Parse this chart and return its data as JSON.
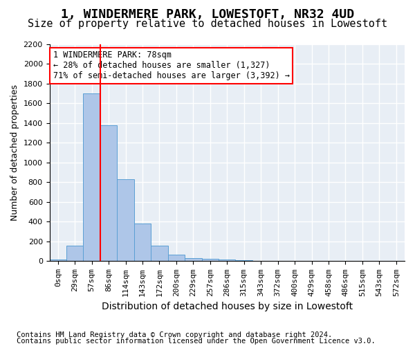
{
  "title": "1, WINDERMERE PARK, LOWESTOFT, NR32 4UD",
  "subtitle": "Size of property relative to detached houses in Lowestoft",
  "xlabel": "Distribution of detached houses by size in Lowestoft",
  "ylabel": "Number of detached properties",
  "bar_color": "#aec6e8",
  "bar_edge_color": "#5a9fd4",
  "background_color": "#e8eef5",
  "grid_color": "#ffffff",
  "bins": [
    "0sqm",
    "29sqm",
    "57sqm",
    "86sqm",
    "114sqm",
    "143sqm",
    "172sqm",
    "200sqm",
    "229sqm",
    "257sqm",
    "286sqm",
    "315sqm",
    "343sqm",
    "372sqm",
    "400sqm",
    "429sqm",
    "458sqm",
    "486sqm",
    "515sqm",
    "543sqm",
    "572sqm"
  ],
  "values": [
    20,
    155,
    1700,
    1380,
    830,
    380,
    160,
    65,
    30,
    25,
    20,
    10,
    5,
    5,
    0,
    0,
    0,
    0,
    0,
    0,
    0
  ],
  "ylim": [
    0,
    2200
  ],
  "yticks": [
    0,
    200,
    400,
    600,
    800,
    1000,
    1200,
    1400,
    1600,
    1800,
    2000,
    2200
  ],
  "property_sqm": 78,
  "red_line_x": 2.5,
  "annotation_text": "1 WINDERMERE PARK: 78sqm\n← 28% of detached houses are smaller (1,327)\n71% of semi-detached houses are larger (3,392) →",
  "footer_line1": "Contains HM Land Registry data © Crown copyright and database right 2024.",
  "footer_line2": "Contains public sector information licensed under the Open Government Licence v3.0.",
  "title_fontsize": 13,
  "subtitle_fontsize": 11,
  "xlabel_fontsize": 10,
  "ylabel_fontsize": 9,
  "tick_fontsize": 8,
  "annotation_fontsize": 8.5,
  "footer_fontsize": 7.5
}
